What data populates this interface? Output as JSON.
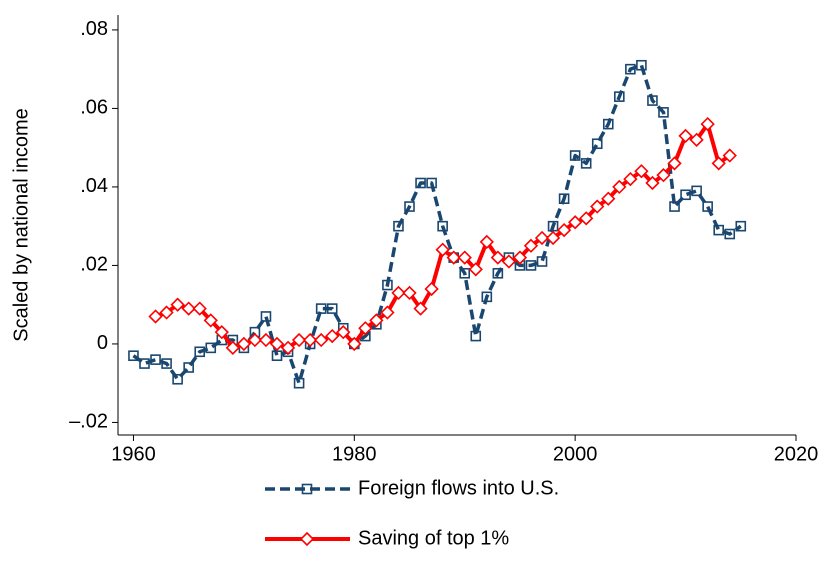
{
  "chart_data": {
    "type": "line",
    "y_label": "Scaled by national income",
    "x": [
      1960,
      1961,
      1962,
      1963,
      1964,
      1965,
      1966,
      1967,
      1968,
      1969,
      1970,
      1971,
      1972,
      1973,
      1974,
      1975,
      1976,
      1977,
      1978,
      1979,
      1980,
      1981,
      1982,
      1983,
      1984,
      1985,
      1986,
      1987,
      1988,
      1989,
      1990,
      1991,
      1992,
      1993,
      1994,
      1995,
      1996,
      1997,
      1998,
      1999,
      2000,
      2001,
      2002,
      2003,
      2004,
      2005,
      2006,
      2007,
      2008,
      2009,
      2010,
      2011,
      2012,
      2013,
      2014,
      2015
    ],
    "series": [
      {
        "name": "Foreign flows into U.S.",
        "color": "#1a476f",
        "dash": true,
        "marker": "square",
        "values": [
          -0.003,
          -0.005,
          -0.004,
          -0.005,
          -0.009,
          -0.006,
          -0.002,
          -0.001,
          0.001,
          0.001,
          -0.001,
          0.003,
          0.007,
          -0.003,
          -0.002,
          -0.01,
          0.0,
          0.009,
          0.009,
          0.004,
          0.0,
          0.002,
          0.005,
          0.015,
          0.03,
          0.035,
          0.041,
          0.041,
          0.03,
          0.022,
          0.018,
          0.002,
          0.012,
          0.018,
          0.022,
          0.02,
          0.02,
          0.021,
          0.03,
          0.037,
          0.048,
          0.046,
          0.051,
          0.056,
          0.063,
          0.07,
          0.071,
          0.062,
          0.059,
          0.035,
          0.038,
          0.039,
          0.035,
          0.029,
          0.028,
          0.03
        ]
      },
      {
        "name": "Saving of top 1%",
        "color": "#ff0000",
        "dash": false,
        "marker": "diamond",
        "values": [
          null,
          null,
          0.007,
          0.008,
          0.01,
          0.009,
          0.009,
          0.006,
          0.003,
          -0.001,
          0.0,
          0.001,
          0.001,
          0.0,
          -0.001,
          0.001,
          0.001,
          0.001,
          0.002,
          0.003,
          0.0,
          0.004,
          0.006,
          0.008,
          0.013,
          0.013,
          0.009,
          0.014,
          0.024,
          0.022,
          0.022,
          0.019,
          0.026,
          0.022,
          0.021,
          0.022,
          0.025,
          0.027,
          0.027,
          0.029,
          0.031,
          0.032,
          0.035,
          0.037,
          0.04,
          0.042,
          0.044,
          0.041,
          0.043,
          0.046,
          0.053,
          0.052,
          0.056,
          0.046,
          0.048,
          null
        ]
      }
    ],
    "xlim": [
      1958.6,
      2020
    ],
    "xticks": [
      1960,
      1980,
      2000,
      2020
    ],
    "ylim": [
      -0.0232,
      0.0838
    ],
    "yticks": [
      {
        "value": -0.02,
        "label": "–.02"
      },
      0,
      {
        "value": 0.02,
        "label": ".02"
      },
      {
        "value": 0.04,
        "label": ".04"
      },
      {
        "value": 0.06,
        "label": ".06"
      },
      {
        "value": 0.08,
        "label": ".08"
      }
    ]
  }
}
